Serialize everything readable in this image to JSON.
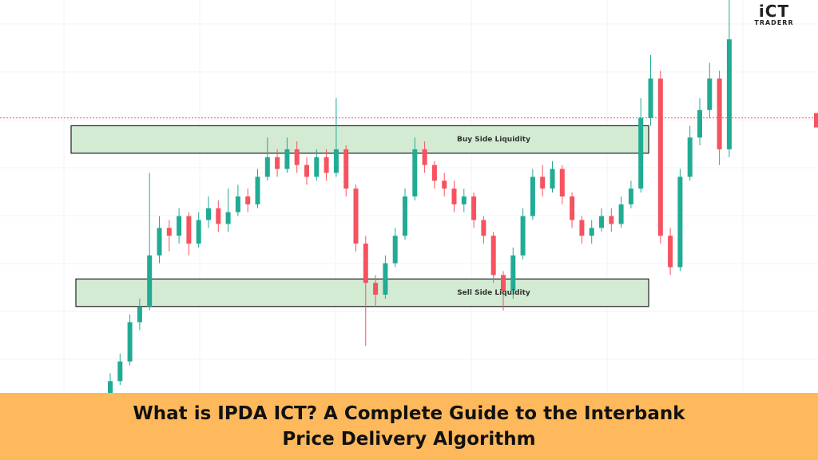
{
  "logo": {
    "mark": "iCT",
    "text": "TRADERR"
  },
  "chart_data": {
    "type": "candlestick",
    "ylim": [
      0,
      100
    ],
    "open": [
      0,
      3,
      8,
      18,
      22,
      35,
      42,
      40,
      45,
      38,
      44,
      47,
      43,
      46,
      50,
      48,
      55,
      60,
      57,
      62,
      58,
      55,
      60,
      56,
      62,
      52,
      38,
      28,
      25,
      33,
      40,
      50,
      62,
      58,
      54,
      52,
      48,
      50,
      44,
      40,
      30,
      26,
      35,
      45,
      55,
      52,
      57,
      50,
      44,
      40,
      42,
      45,
      43,
      48,
      52,
      70,
      80,
      40,
      32,
      55,
      65,
      72,
      80,
      62
    ],
    "high": [
      5,
      10,
      20,
      24,
      56,
      45,
      44,
      47,
      46,
      46,
      50,
      49,
      52,
      53,
      52,
      57,
      65,
      62,
      65,
      64,
      60,
      62,
      62,
      75,
      63,
      53,
      40,
      30,
      35,
      42,
      52,
      65,
      64,
      59,
      56,
      54,
      52,
      51,
      45,
      41,
      31,
      37,
      47,
      57,
      58,
      59,
      58,
      51,
      45,
      44,
      47,
      47,
      50,
      54,
      75,
      86,
      82,
      42,
      57,
      68,
      75,
      84,
      82,
      100
    ],
    "low": [
      0,
      2,
      7,
      16,
      21,
      33,
      36,
      38,
      35,
      37,
      42,
      41,
      41,
      45,
      46,
      47,
      54,
      55,
      56,
      56,
      53,
      54,
      54,
      55,
      50,
      36,
      12,
      22,
      24,
      32,
      39,
      49,
      56,
      52,
      50,
      46,
      46,
      42,
      38,
      28,
      21,
      24,
      34,
      44,
      50,
      51,
      48,
      42,
      38,
      38,
      41,
      41,
      42,
      47,
      51,
      68,
      38,
      30,
      31,
      54,
      63,
      70,
      58,
      60
    ],
    "close": [
      3,
      8,
      18,
      22,
      35,
      42,
      40,
      45,
      38,
      44,
      47,
      43,
      46,
      50,
      48,
      55,
      60,
      57,
      62,
      58,
      55,
      60,
      56,
      62,
      52,
      38,
      28,
      25,
      33,
      40,
      50,
      62,
      58,
      54,
      52,
      48,
      50,
      44,
      40,
      30,
      26,
      35,
      45,
      55,
      52,
      57,
      50,
      44,
      40,
      42,
      45,
      43,
      48,
      52,
      70,
      80,
      40,
      32,
      55,
      65,
      72,
      80,
      62,
      90
    ],
    "colors": {
      "up": "#22ab94",
      "down": "#f7525f"
    },
    "zones": [
      {
        "label": "Buy Side Liquidity",
        "top": 68,
        "bottom": 61
      },
      {
        "label": "Sell Side Liquidity",
        "top": 29,
        "bottom": 22
      }
    ],
    "price_line": 70
  },
  "banner": {
    "title": "What is IPDA ICT? A Complete Guide to the Interbank Price Delivery Algorithm"
  }
}
